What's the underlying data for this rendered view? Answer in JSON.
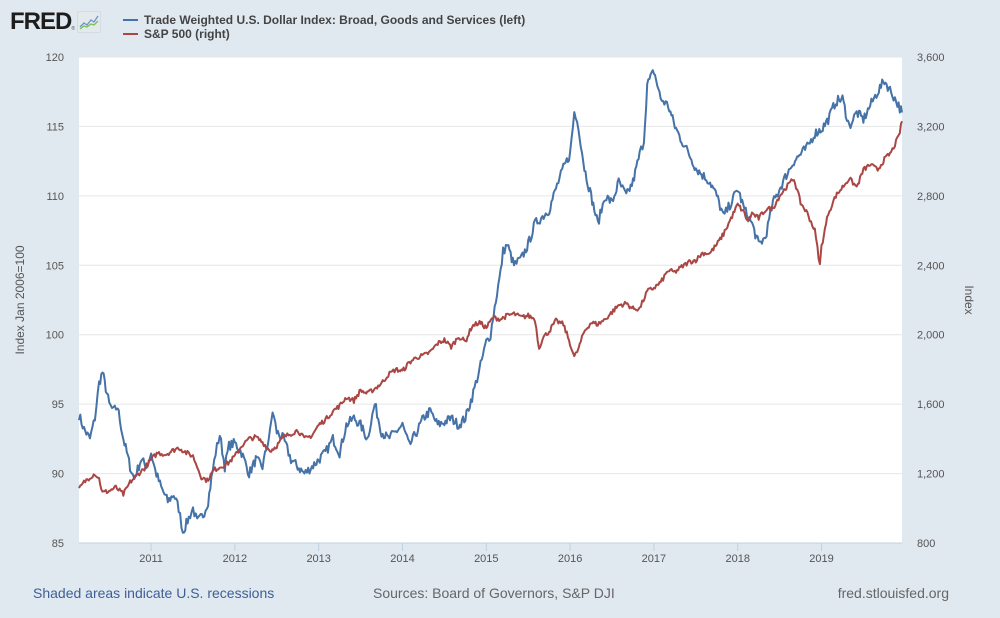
{
  "header": {
    "logo_text": "FRED",
    "logo_mark": "®",
    "logo_icon": "line-chart-icon"
  },
  "legend": [
    {
      "label": "Trade Weighted U.S. Dollar Index: Broad, Goods and Services (left)",
      "color": "#4572a7"
    },
    {
      "label": "S&P 500 (right)",
      "color": "#aa4643"
    }
  ],
  "footer": {
    "recessions_note": "Shaded areas indicate U.S. recessions",
    "sources": "Sources: Board of Governors, S&P DJI",
    "site": "fred.stlouisfed.org"
  },
  "colors": {
    "background": "#e1e9f0",
    "plot_background": "#ffffff",
    "gridline": "#e6e6e6",
    "dollar_series": "#4572a7",
    "sp500_series": "#aa4643"
  },
  "chart_data": {
    "type": "line",
    "title": "",
    "xlabel": "",
    "ylabel_left": "Index Jan 2006=100",
    "ylabel_right": "Index",
    "x_range": [
      2010.14,
      2019.96
    ],
    "ylim_left": [
      85,
      120
    ],
    "ylim_right": [
      800,
      3600
    ],
    "yticks_left": [
      "85",
      "90",
      "95",
      "100",
      "105",
      "110",
      "115",
      "120"
    ],
    "yticks_left_values": [
      85,
      90,
      95,
      100,
      105,
      110,
      115,
      120
    ],
    "yticks_right": [
      "800",
      "1,200",
      "1,600",
      "2,000",
      "2,400",
      "2,800",
      "3,200",
      "3,600"
    ],
    "yticks_right_values": [
      800,
      1200,
      1600,
      2000,
      2400,
      2800,
      3200,
      3600
    ],
    "xticks": [
      "2011",
      "2012",
      "2013",
      "2014",
      "2015",
      "2016",
      "2017",
      "2018",
      "2019"
    ],
    "xticks_values": [
      2011,
      2012,
      2013,
      2014,
      2015,
      2016,
      2017,
      2018,
      2019
    ],
    "grid": true,
    "legend_position": "top-left",
    "series": [
      {
        "name": "Trade Weighted U.S. Dollar Index: Broad, Goods and Services (left)",
        "axis": "left",
        "color": "#4572a7",
        "x": [
          2010.14,
          2010.2,
          2010.27,
          2010.33,
          2010.38,
          2010.42,
          2010.5,
          2010.55,
          2010.6,
          2010.67,
          2010.75,
          2010.8,
          2010.88,
          2010.95,
          2011.0,
          2011.05,
          2011.12,
          2011.2,
          2011.27,
          2011.33,
          2011.38,
          2011.45,
          2011.5,
          2011.55,
          2011.62,
          2011.68,
          2011.72,
          2011.77,
          2011.82,
          2011.88,
          2011.93,
          2012.0,
          2012.08,
          2012.17,
          2012.25,
          2012.33,
          2012.42,
          2012.45,
          2012.5,
          2012.58,
          2012.67,
          2012.75,
          2012.83,
          2012.92,
          2013.0,
          2013.08,
          2013.17,
          2013.25,
          2013.33,
          2013.42,
          2013.5,
          2013.58,
          2013.67,
          2013.75,
          2013.83,
          2013.92,
          2014.0,
          2014.08,
          2014.17,
          2014.25,
          2014.33,
          2014.42,
          2014.5,
          2014.58,
          2014.67,
          2014.75,
          2014.83,
          2014.92,
          2015.0,
          2015.05,
          2015.1,
          2015.17,
          2015.2,
          2015.25,
          2015.33,
          2015.42,
          2015.5,
          2015.58,
          2015.67,
          2015.75,
          2015.83,
          2015.92,
          2016.0,
          2016.05,
          2016.1,
          2016.17,
          2016.25,
          2016.33,
          2016.42,
          2016.5,
          2016.58,
          2016.67,
          2016.75,
          2016.83,
          2016.88,
          2016.92,
          2017.0,
          2017.08,
          2017.17,
          2017.25,
          2017.33,
          2017.42,
          2017.5,
          2017.58,
          2017.67,
          2017.75,
          2017.83,
          2017.92,
          2018.0,
          2018.08,
          2018.17,
          2018.25,
          2018.33,
          2018.42,
          2018.5,
          2018.58,
          2018.67,
          2018.75,
          2018.83,
          2018.92,
          2019.0,
          2019.08,
          2019.17,
          2019.25,
          2019.33,
          2019.42,
          2019.5,
          2019.58,
          2019.67,
          2019.75,
          2019.83,
          2019.92,
          2019.96
        ],
        "y": [
          94.2,
          93.2,
          92.5,
          94.0,
          96.5,
          97.3,
          95.0,
          94.5,
          94.8,
          92.5,
          90.5,
          89.6,
          91.0,
          90.5,
          91.5,
          90.2,
          89.0,
          88.0,
          88.5,
          87.5,
          85.8,
          86.8,
          87.5,
          86.5,
          87.0,
          88.0,
          89.6,
          91.5,
          92.8,
          90.5,
          92.0,
          92.2,
          91.5,
          90.0,
          91.0,
          90.5,
          93.0,
          94.5,
          93.0,
          92.5,
          91.0,
          90.5,
          90.0,
          90.5,
          91.0,
          91.5,
          92.5,
          91.5,
          93.5,
          94.0,
          93.5,
          92.5,
          95.0,
          93.0,
          92.5,
          93.0,
          93.5,
          92.0,
          93.0,
          94.0,
          94.5,
          93.5,
          93.7,
          94.0,
          93.5,
          94.0,
          95.5,
          97.5,
          99.5,
          100.0,
          102.0,
          104.5,
          106.0,
          106.5,
          105.0,
          105.5,
          106.5,
          108.0,
          108.5,
          109.0,
          110.5,
          112.0,
          113.0,
          116.0,
          115.0,
          112.0,
          110.0,
          108.0,
          110.0,
          109.5,
          111.0,
          110.0,
          111.0,
          113.0,
          114.0,
          118.0,
          119.0,
          117.0,
          116.5,
          115.0,
          114.0,
          113.0,
          112.0,
          111.5,
          111.0,
          110.0,
          108.5,
          109.5,
          110.5,
          109.0,
          108.0,
          106.5,
          107.0,
          109.5,
          110.5,
          111.5,
          112.5,
          113.0,
          113.5,
          114.5,
          114.8,
          115.5,
          116.8,
          117.0,
          115.0,
          116.0,
          115.5,
          116.5,
          117.5,
          118.3,
          117.5,
          116.5,
          116.0
        ]
      },
      {
        "name": "S&P 500 (right)",
        "axis": "right",
        "color": "#aa4643",
        "x": [
          2010.14,
          2010.2,
          2010.27,
          2010.33,
          2010.38,
          2010.42,
          2010.5,
          2010.58,
          2010.67,
          2010.75,
          2010.83,
          2010.92,
          2011.0,
          2011.08,
          2011.17,
          2011.25,
          2011.33,
          2011.42,
          2011.5,
          2011.55,
          2011.6,
          2011.67,
          2011.75,
          2011.83,
          2011.92,
          2012.0,
          2012.08,
          2012.17,
          2012.25,
          2012.33,
          2012.42,
          2012.5,
          2012.58,
          2012.67,
          2012.75,
          2012.83,
          2012.92,
          2013.0,
          2013.08,
          2013.17,
          2013.25,
          2013.33,
          2013.42,
          2013.5,
          2013.58,
          2013.67,
          2013.75,
          2013.83,
          2013.92,
          2014.0,
          2014.08,
          2014.17,
          2014.25,
          2014.33,
          2014.42,
          2014.5,
          2014.58,
          2014.67,
          2014.75,
          2014.83,
          2014.92,
          2015.0,
          2015.08,
          2015.17,
          2015.25,
          2015.33,
          2015.42,
          2015.5,
          2015.58,
          2015.63,
          2015.67,
          2015.75,
          2015.83,
          2015.92,
          2016.0,
          2016.05,
          2016.1,
          2016.17,
          2016.25,
          2016.33,
          2016.42,
          2016.5,
          2016.58,
          2016.67,
          2016.75,
          2016.83,
          2016.92,
          2017.0,
          2017.08,
          2017.17,
          2017.25,
          2017.33,
          2017.42,
          2017.5,
          2017.58,
          2017.67,
          2017.75,
          2017.83,
          2017.92,
          2018.0,
          2018.08,
          2018.12,
          2018.17,
          2018.25,
          2018.33,
          2018.42,
          2018.5,
          2018.58,
          2018.67,
          2018.75,
          2018.83,
          2018.92,
          2018.98,
          2019.0,
          2019.08,
          2019.17,
          2019.25,
          2019.33,
          2019.42,
          2019.5,
          2019.58,
          2019.67,
          2019.75,
          2019.83,
          2019.92,
          2019.96
        ],
        "y": [
          1110,
          1150,
          1180,
          1200,
          1170,
          1090,
          1100,
          1120,
          1080,
          1150,
          1190,
          1230,
          1280,
          1320,
          1310,
          1330,
          1350,
          1320,
          1300,
          1240,
          1180,
          1160,
          1220,
          1240,
          1260,
          1300,
          1360,
          1400,
          1410,
          1380,
          1330,
          1360,
          1410,
          1430,
          1450,
          1400,
          1420,
          1480,
          1510,
          1560,
          1590,
          1640,
          1620,
          1680,
          1660,
          1690,
          1720,
          1770,
          1800,
          1790,
          1840,
          1870,
          1880,
          1900,
          1950,
          1970,
          1930,
          1990,
          1960,
          2050,
          2070,
          2040,
          2100,
          2090,
          2110,
          2120,
          2100,
          2110,
          2090,
          1920,
          1980,
          2020,
          2080,
          2060,
          1950,
          1870,
          1920,
          2020,
          2070,
          2060,
          2090,
          2130,
          2170,
          2180,
          2150,
          2150,
          2250,
          2270,
          2300,
          2370,
          2360,
          2390,
          2420,
          2430,
          2470,
          2470,
          2520,
          2580,
          2670,
          2750,
          2700,
          2650,
          2700,
          2670,
          2720,
          2730,
          2800,
          2850,
          2900,
          2760,
          2700,
          2600,
          2400,
          2510,
          2700,
          2800,
          2850,
          2900,
          2850,
          2950,
          2980,
          2950,
          3010,
          3050,
          3140,
          3230
        ]
      }
    ]
  }
}
